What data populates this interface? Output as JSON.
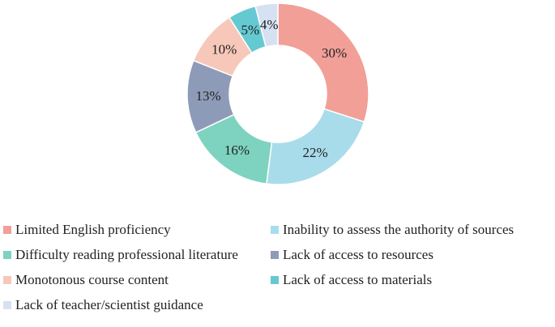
{
  "chart_data": {
    "type": "pie",
    "donut": true,
    "categories": [
      "Limited English proficiency",
      "Inability to assess the authority of sources",
      "Difficulty reading professional literature",
      "Lack of access to resources",
      "Monotonous course content",
      "Lack of access to materials",
      "Lack of teacher/scientist guidance"
    ],
    "values": [
      30,
      22,
      16,
      13,
      10,
      5,
      4
    ],
    "labels": [
      "30%",
      "22%",
      "16%",
      "13%",
      "10%",
      "5%",
      "4%"
    ],
    "colors": [
      "#F19F97",
      "#A9DCEB",
      "#7DD3C0",
      "#8E9BB8",
      "#F7C8BA",
      "#65C9D2",
      "#D6E1F2"
    ],
    "legend_position": "bottom"
  }
}
